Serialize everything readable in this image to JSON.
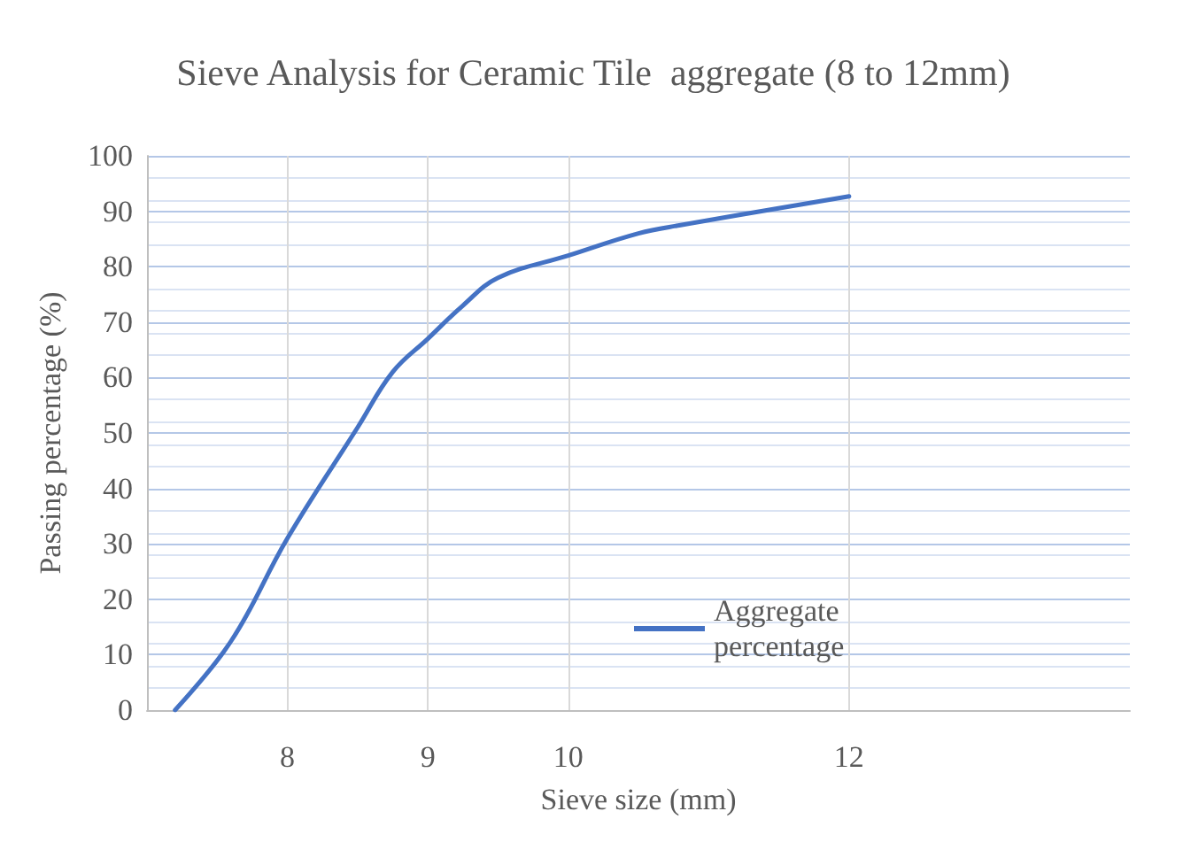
{
  "chart_data": {
    "type": "line",
    "title": "Sieve Analysis for Ceramic Tile  aggregate (8 to 12mm)",
    "xlabel": "Sieve size (mm)",
    "ylabel": "Passing percentage (%)",
    "series": [
      {
        "name": "Aggregate percentage",
        "color": "#4472c4",
        "x": [
          7.2,
          7.6,
          8,
          8.5,
          8.75,
          9,
          9.25,
          9.5,
          10,
          10.5,
          10.8,
          12
        ],
        "values": [
          0,
          12.5,
          31,
          51,
          61,
          67,
          73,
          78,
          82,
          86,
          87.5,
          92.7
        ]
      }
    ],
    "xlim": [
      7,
      14
    ],
    "xticks": [
      8,
      9,
      10,
      12
    ],
    "ylim": [
      0,
      100
    ],
    "yticks": [
      0,
      10,
      20,
      30,
      40,
      50,
      60,
      70,
      80,
      90,
      100
    ],
    "grid": true,
    "legend": "bottom right",
    "marker": "none",
    "line_style": "solid"
  }
}
